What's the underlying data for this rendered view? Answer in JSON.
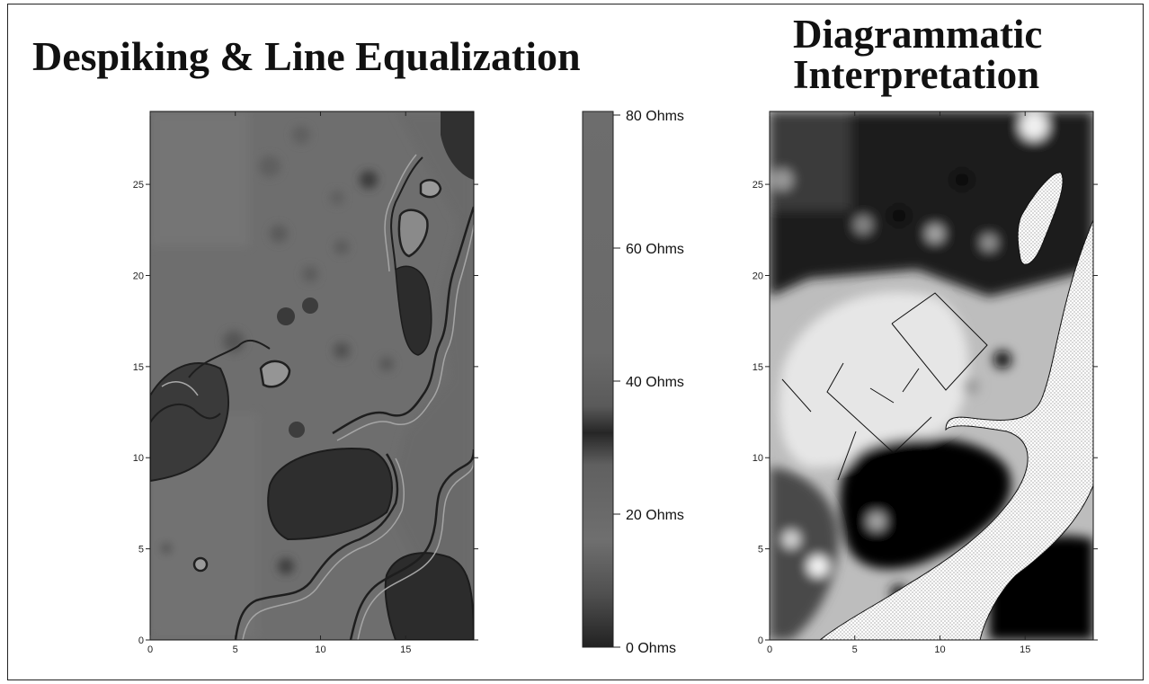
{
  "panels": {
    "left": {
      "title": "Despiking & Line Equalization",
      "x_ticks": [
        "0",
        "5",
        "10",
        "15"
      ],
      "y_ticks": [
        "0",
        "5",
        "10",
        "15",
        "20",
        "25"
      ],
      "x_range": [
        0,
        19
      ],
      "y_range": [
        0,
        29
      ]
    },
    "right": {
      "title_line1": "Diagrammatic",
      "title_line2": "Interpretation",
      "x_ticks": [
        "0",
        "5",
        "10",
        "15"
      ],
      "y_ticks": [
        "0",
        "5",
        "10",
        "15",
        "20",
        "25"
      ],
      "x_range": [
        0,
        19
      ],
      "y_range": [
        0,
        29
      ]
    }
  },
  "color_scale": {
    "labels": [
      "80 Ohms",
      "60 Ohms",
      "40 Ohms",
      "20 Ohms",
      "0 Ohms"
    ],
    "values": [
      80,
      60,
      40,
      20,
      0
    ]
  },
  "colors": {
    "map_mid": "#6e6e6e",
    "map_dark": "#2a2a2a",
    "interp_light": "#e6e6e6",
    "interp_dark": "#060606"
  }
}
